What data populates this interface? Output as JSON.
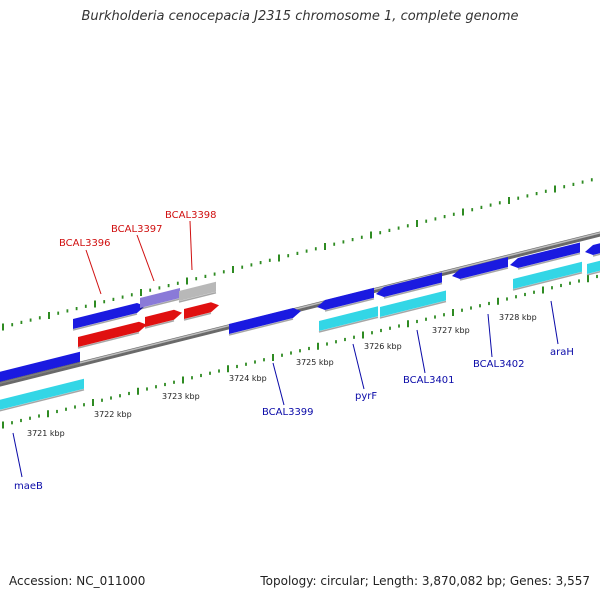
{
  "title": "Burkholderia cenocepacia J2315 chromosome 1, complete genome",
  "footer": {
    "accession": "Accession: NC_011000",
    "summary": "Topology: circular; Length: 3,870,082 bp; Genes: 3,557"
  },
  "colors": {
    "backbone": "#888888",
    "tick": "#2e8b22",
    "gene_blue": "#1a1ae0",
    "gene_cyan": "#33d6e6",
    "gene_red": "#e01010",
    "gene_gray": "#b8b8b8",
    "gene_violet": "#8a7ad8",
    "label_blue": "#0a0aa8",
    "label_red": "#d01010"
  },
  "scale_labels": [
    "3721 kbp",
    "3722 kbp",
    "3723 kbp",
    "3724 kbp",
    "3725 kbp",
    "3726 kbp",
    "3727 kbp",
    "3728 kbp"
  ],
  "gene_labels": [
    {
      "text": "maeB",
      "color": "blue"
    },
    {
      "text": "BCAL3396",
      "color": "red"
    },
    {
      "text": "BCAL3397",
      "color": "red"
    },
    {
      "text": "BCAL3398",
      "color": "red"
    },
    {
      "text": "BCAL3399",
      "color": "blue"
    },
    {
      "text": "pyrF",
      "color": "blue"
    },
    {
      "text": "BCAL3401",
      "color": "blue"
    },
    {
      "text": "BCAL3402",
      "color": "blue"
    },
    {
      "text": "araH",
      "color": "blue"
    }
  ]
}
